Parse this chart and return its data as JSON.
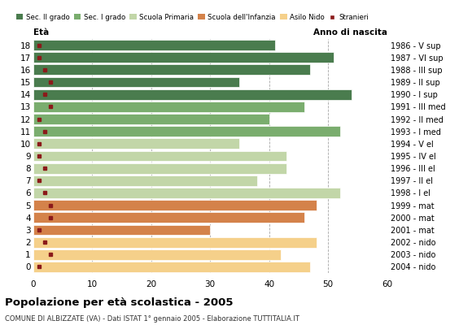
{
  "ages": [
    18,
    17,
    16,
    15,
    14,
    13,
    12,
    11,
    10,
    9,
    8,
    7,
    6,
    5,
    4,
    3,
    2,
    1,
    0
  ],
  "bar_values": [
    41,
    51,
    47,
    35,
    54,
    46,
    40,
    52,
    35,
    43,
    43,
    38,
    52,
    48,
    46,
    30,
    48,
    42,
    47
  ],
  "stranieri": [
    1,
    1,
    2,
    3,
    2,
    3,
    1,
    2,
    1,
    1,
    2,
    1,
    2,
    3,
    3,
    1,
    2,
    3,
    1
  ],
  "age_colors": [
    "#4a7c4e",
    "#4a7c4e",
    "#4a7c4e",
    "#4a7c4e",
    "#4a7c4e",
    "#7aad6e",
    "#7aad6e",
    "#7aad6e",
    "#c2d6a8",
    "#c2d6a8",
    "#c2d6a8",
    "#c2d6a8",
    "#c2d6a8",
    "#d4824a",
    "#d4824a",
    "#d4824a",
    "#f5d08a",
    "#f5d08a",
    "#f5d08a"
  ],
  "right_labels": [
    "1986 - V sup",
    "1987 - VI sup",
    "1988 - III sup",
    "1989 - II sup",
    "1990 - I sup",
    "1991 - III med",
    "1992 - II med",
    "1993 - I med",
    "1994 - V el",
    "1995 - IV el",
    "1996 - III el",
    "1997 - II el",
    "1998 - I el",
    "1999 - mat",
    "2000 - mat",
    "2001 - mat",
    "2002 - nido",
    "2003 - nido",
    "2004 - nido"
  ],
  "legend_labels": [
    "Sec. II grado",
    "Sec. I grado",
    "Scuola Primaria",
    "Scuola dell'Infanzia",
    "Asilo Nido",
    "Stranieri"
  ],
  "legend_colors": [
    "#4a7c4e",
    "#7aad6e",
    "#c2d6a8",
    "#d4824a",
    "#f5d08a",
    "#8b1a1a"
  ],
  "title": "Popolazione per età scolastica - 2005",
  "subtitle": "COMUNE DI ALBIZZATE (VA) - Dati ISTAT 1° gennaio 2005 - Elaborazione TUTTITALIA.IT",
  "xlabel_eta": "Età",
  "xlabel_anno": "Anno di nascita",
  "xlim": [
    0,
    60
  ],
  "xticks": [
    0,
    10,
    20,
    30,
    40,
    50,
    60
  ],
  "stranieri_color": "#8b1a1a",
  "background_color": "#ffffff",
  "bar_height": 0.85,
  "dpi": 100,
  "figsize": [
    5.8,
    4.0
  ]
}
